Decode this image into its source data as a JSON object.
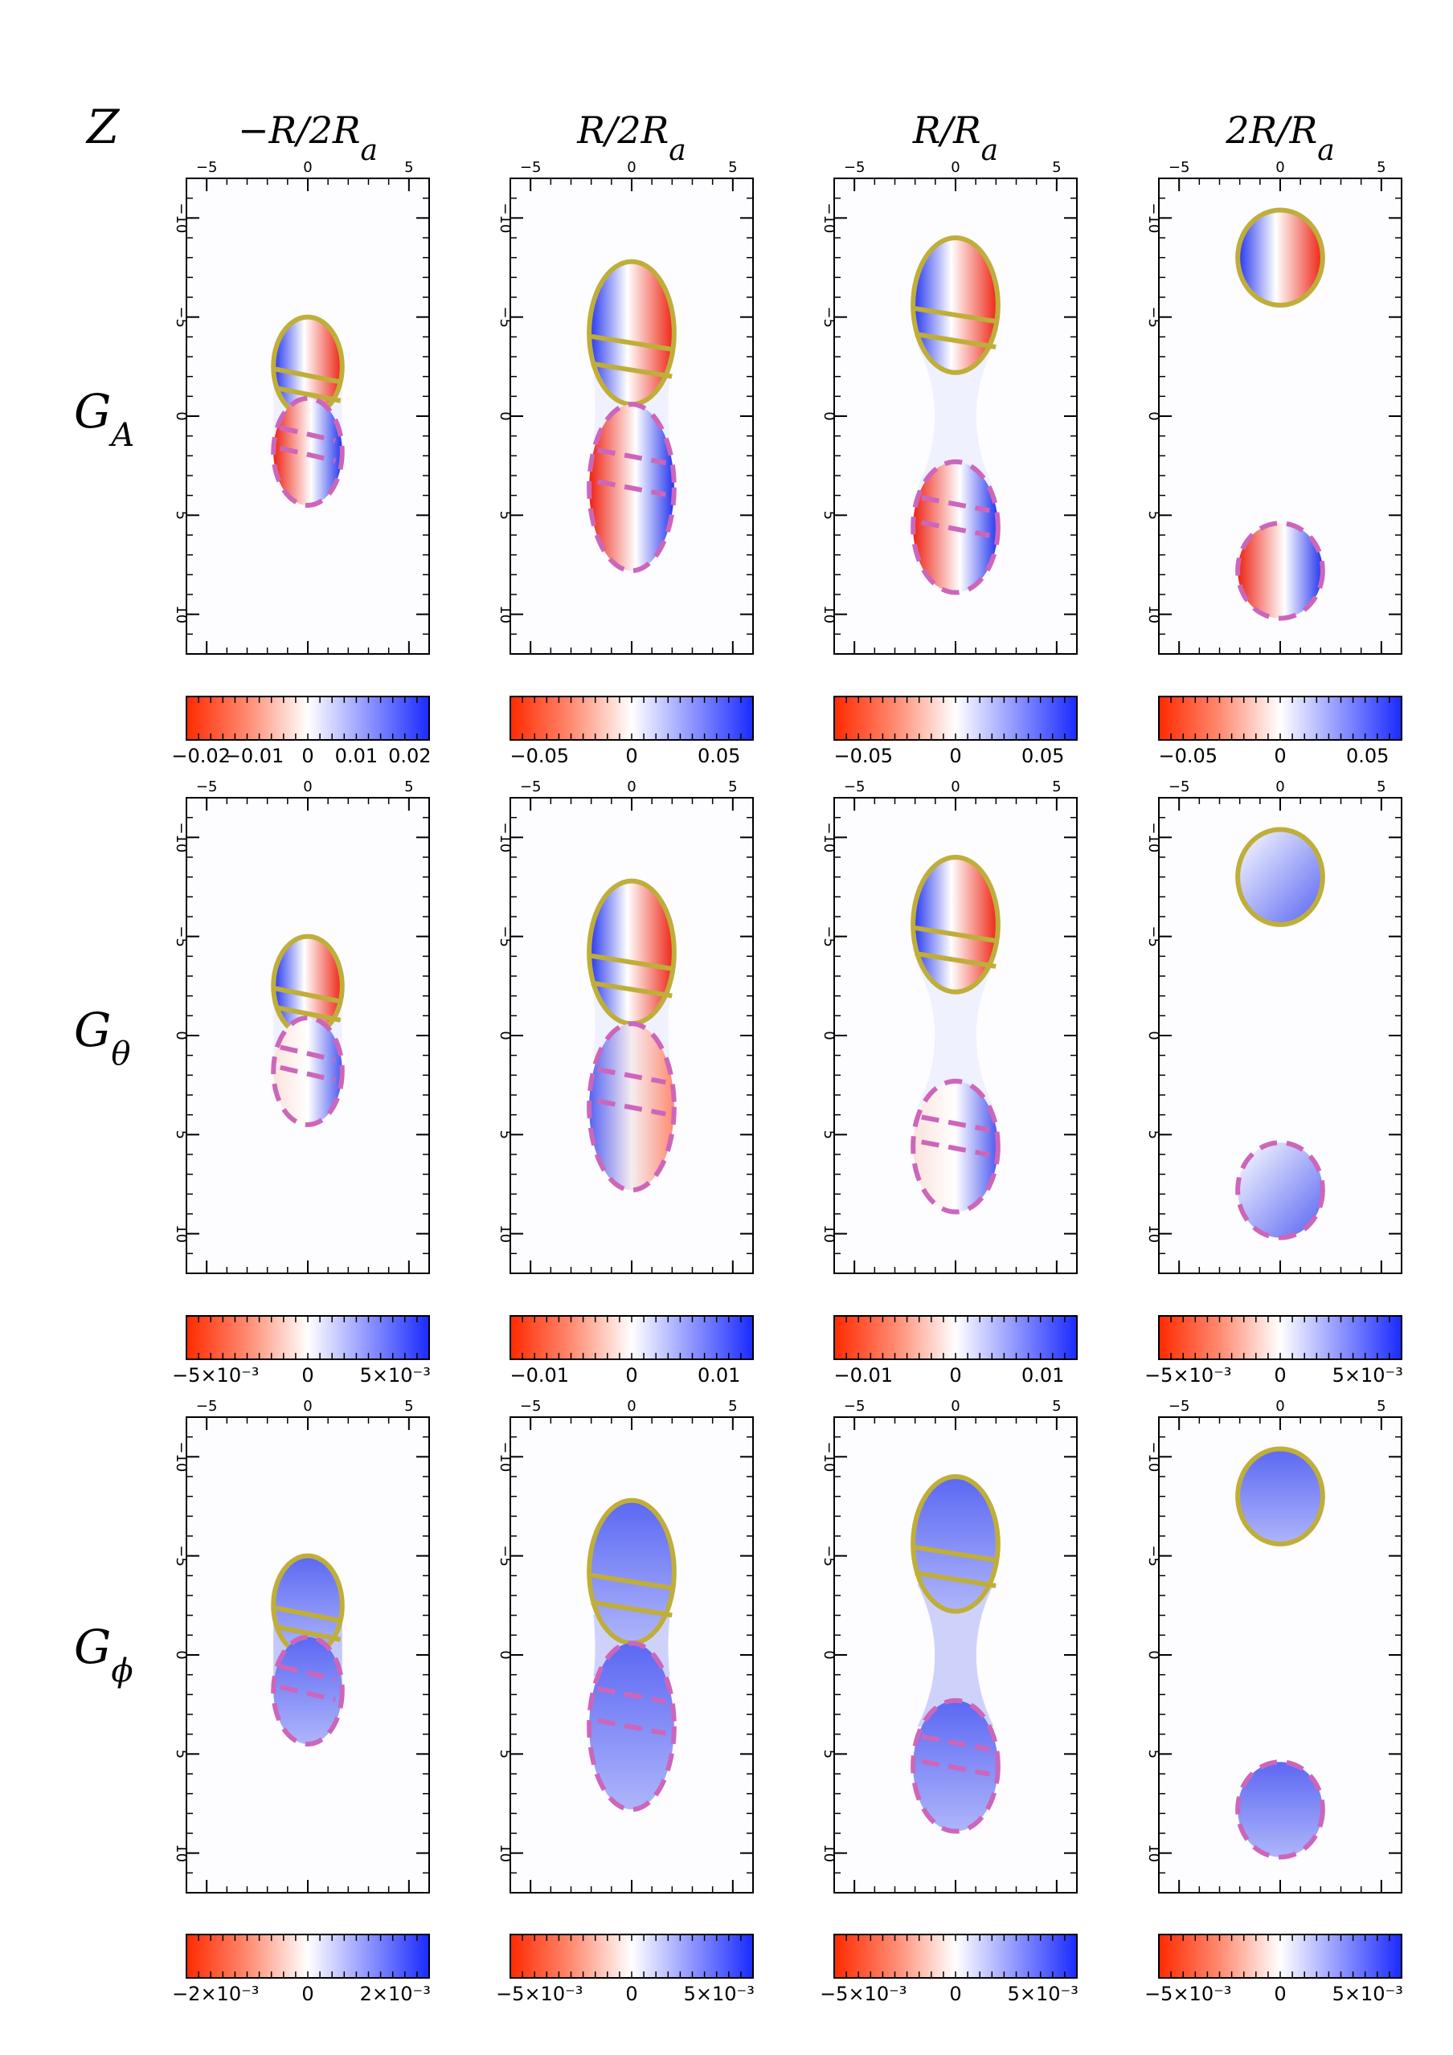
{
  "figure": {
    "z_label": "Z",
    "columns": [
      {
        "label": "−R/2Rₐ",
        "html": "−R/2R<tspan baseline-shift='sub' font-size='36'>a</tspan>"
      },
      {
        "label": "R/2Rₐ",
        "html": "R/2R<tspan baseline-shift='sub' font-size='36'>a</tspan>"
      },
      {
        "label": "R/Rₐ",
        "html": "R/R<tspan baseline-shift='sub' font-size='36'>a</tspan>"
      },
      {
        "label": "2R/Rₐ",
        "html": "2R/R<tspan baseline-shift='sub' font-size='36'>a</tspan>"
      }
    ],
    "rows": [
      {
        "label": "G_A",
        "symbol": "G",
        "sub": "A"
      },
      {
        "label": "G_θ",
        "symbol": "G",
        "sub": "θ"
      },
      {
        "label": "G_ϕ",
        "symbol": "G",
        "sub": "ϕ"
      }
    ]
  },
  "chart_data": {
    "type": "heatmap",
    "x_ticks": [
      "−5",
      "0",
      "5"
    ],
    "y_ticks": [
      "−10",
      "−5",
      "0",
      "5",
      "10"
    ],
    "xlim": [
      -6,
      6
    ],
    "ylim": [
      -12,
      12
    ],
    "colormap": {
      "negative": "#ff2a00",
      "zero": "#ffffff",
      "positive": "#1a2bff"
    },
    "contour_colors": {
      "solid": "#bfae3a",
      "dashed": "#cc66bb"
    },
    "colorbars": [
      [
        {
          "ticks": [
            "−0.02",
            "−0.01",
            "0",
            "0.01",
            "0.02"
          ]
        },
        {
          "ticks": [
            "−0.05",
            "0",
            "0.05"
          ]
        },
        {
          "ticks": [
            "−0.05",
            "0",
            "0.05"
          ]
        },
        {
          "ticks": [
            "−0.05",
            "0",
            "0.05"
          ]
        }
      ],
      [
        {
          "ticks": [
            "−5×10⁻³",
            "0",
            "5×10⁻³"
          ]
        },
        {
          "ticks": [
            "−0.01",
            "0",
            "0.01"
          ]
        },
        {
          "ticks": [
            "−0.01",
            "0",
            "0.01"
          ]
        },
        {
          "ticks": [
            "−5×10⁻³",
            "0",
            "5×10⁻³"
          ]
        }
      ],
      [
        {
          "ticks": [
            "−2×10⁻³",
            "0",
            "2×10⁻³"
          ]
        },
        {
          "ticks": [
            "−5×10⁻³",
            "0",
            "5×10⁻³"
          ]
        },
        {
          "ticks": [
            "−5×10⁻³",
            "0",
            "5×10⁻³"
          ]
        },
        {
          "ticks": [
            "−5×10⁻³",
            "0",
            "5×10⁻³"
          ]
        }
      ]
    ]
  }
}
